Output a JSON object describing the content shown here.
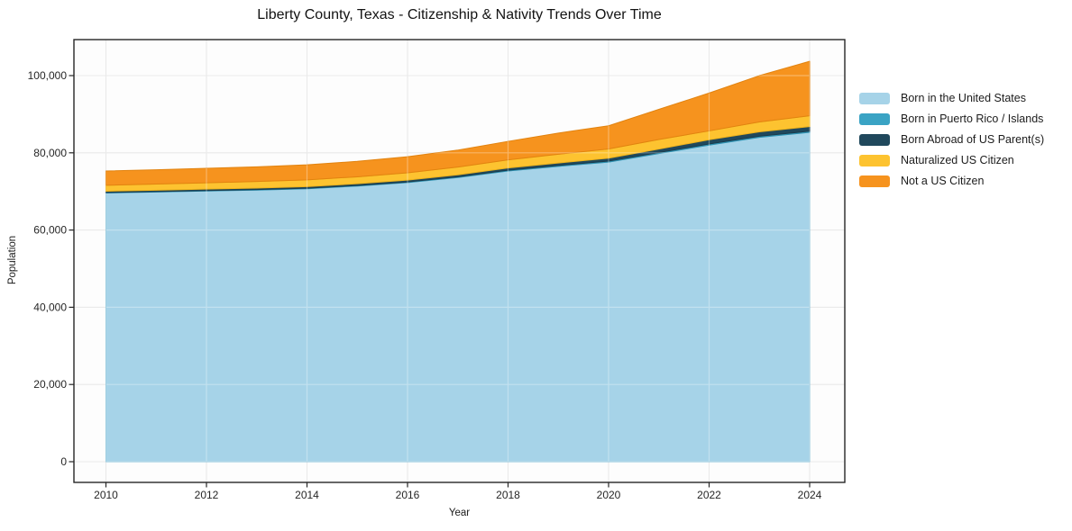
{
  "figure": {
    "title": "Liberty County, Texas - Citizenship & Nativity Trends Over Time"
  },
  "chart_data": {
    "type": "area",
    "stacked": true,
    "title": "Liberty County, Texas - Citizenship & Nativity Trends Over Time",
    "xlabel": "Year",
    "ylabel": "Population",
    "x": [
      2010,
      2011,
      2012,
      2013,
      2014,
      2015,
      2016,
      2017,
      2018,
      2019,
      2020,
      2021,
      2022,
      2023,
      2024
    ],
    "series": [
      {
        "name": "Born in the United States",
        "color": "#a6d3e8",
        "edge_color": "#8cc4db",
        "values": [
          69600,
          69850,
          70100,
          70350,
          70700,
          71400,
          72300,
          73600,
          75300,
          76500,
          77600,
          79800,
          82000,
          84000,
          85300
        ]
      },
      {
        "name": "Born in Puerto Rico / Islands",
        "color": "#3aa3c4",
        "edge_color": "#2e92b2",
        "values": [
          100,
          100,
          110,
          120,
          130,
          140,
          150,
          180,
          200,
          220,
          250,
          260,
          280,
          290,
          300
        ]
      },
      {
        "name": "Born Abroad of US Parent(s)",
        "color": "#20485c",
        "edge_color": "#193c4e",
        "values": [
          350,
          350,
          380,
          400,
          420,
          450,
          480,
          520,
          570,
          650,
          750,
          900,
          1100,
          1150,
          1200
        ]
      },
      {
        "name": "Naturalized US Citizen",
        "color": "#fdc330",
        "edge_color": "#edb21b",
        "values": [
          1550,
          1600,
          1650,
          1700,
          1750,
          1800,
          1900,
          2000,
          2100,
          2250,
          2400,
          2500,
          2300,
          2550,
          2800
        ]
      },
      {
        "name": "Not a US Citizen",
        "color": "#f6931e",
        "edge_color": "#e2830f",
        "values": [
          3700,
          3700,
          3750,
          3800,
          3900,
          4000,
          4150,
          4400,
          4800,
          5500,
          6000,
          7800,
          9800,
          12000,
          14100
        ]
      }
    ],
    "x_ticks": [
      {
        "v": 2010,
        "label": "2010"
      },
      {
        "v": 2012,
        "label": "2012"
      },
      {
        "v": 2014,
        "label": "2014"
      },
      {
        "v": 2016,
        "label": "2016"
      },
      {
        "v": 2018,
        "label": "2018"
      },
      {
        "v": 2020,
        "label": "2020"
      },
      {
        "v": 2022,
        "label": "2022"
      },
      {
        "v": 2024,
        "label": "2024"
      }
    ],
    "y_ticks": [
      {
        "v": 0,
        "label": "0"
      },
      {
        "v": 20000,
        "label": "20,000"
      },
      {
        "v": 40000,
        "label": "40,000"
      },
      {
        "v": 60000,
        "label": "60,000"
      },
      {
        "v": 80000,
        "label": "80,000"
      },
      {
        "v": 100000,
        "label": "100,000"
      }
    ],
    "ylim": [
      -5400,
      109800
    ],
    "xlim": [
      2009.36,
      2024.7
    ],
    "grid": true,
    "legend_position": "right-of-plot",
    "colors": {
      "figure_background": "#ffffff",
      "plot_background": "#fdfdfd",
      "gridline": "#eaeaea",
      "gridline_over_area": "#ffffff",
      "spine": "#262626",
      "tick_text": "#262626",
      "title_text": "#131313"
    }
  }
}
